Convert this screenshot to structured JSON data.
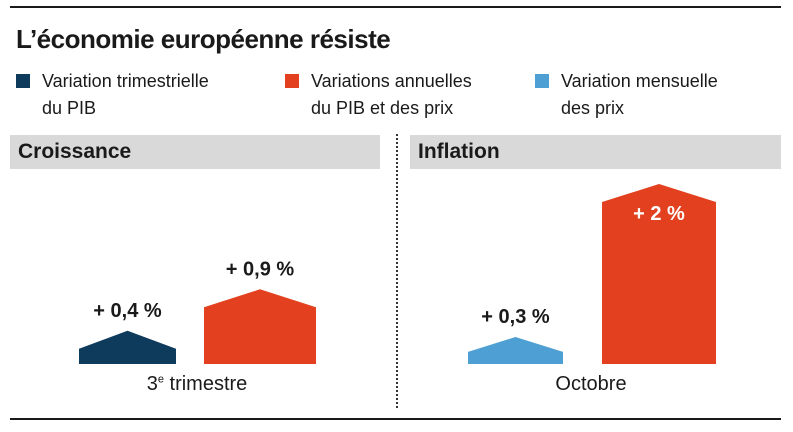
{
  "title": "L’économie européenne résiste",
  "legend": [
    {
      "label_line1": "Variation trimestrielle",
      "label_line2": "du PIB",
      "color": "#0e3a5c"
    },
    {
      "label_line1": "Variations annuelles",
      "label_line2": "du PIB et des prix",
      "color": "#e2401f"
    },
    {
      "label_line1": "Variation mensuelle",
      "label_line2": "des prix",
      "color": "#4e9fd3"
    }
  ],
  "chart_data": [
    {
      "type": "bar",
      "title": "Croissance",
      "category_label": "3e trimestre",
      "category_main": "3",
      "category_sup": "e",
      "category_rest": " trimestre",
      "series": [
        {
          "name": "Variation trimestrielle du PIB",
          "value": 0.4,
          "label": "+ 0,4 %",
          "color": "#0e3a5c"
        },
        {
          "name": "Variations annuelles du PIB et des prix",
          "value": 0.9,
          "label": "+ 0,9 %",
          "color": "#e2401f"
        }
      ]
    },
    {
      "type": "bar",
      "title": "Inflation",
      "category_label": "Octobre",
      "series": [
        {
          "name": "Variation mensuelle des prix",
          "value": 0.3,
          "label": "+ 0,3 %",
          "color": "#4e9fd3"
        },
        {
          "name": "Variations annuelles du PIB et des prix",
          "value": 2,
          "label": "+ 2 %",
          "color": "#e2401f"
        }
      ]
    }
  ]
}
